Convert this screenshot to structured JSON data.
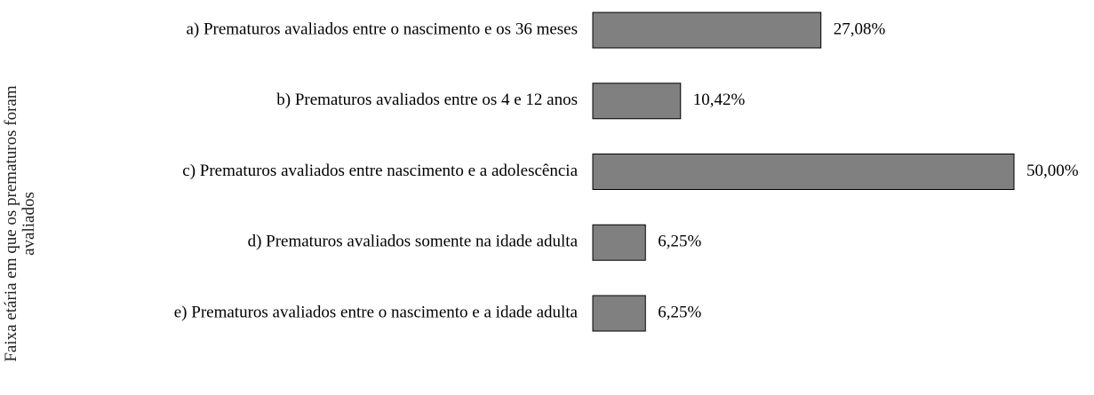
{
  "chart_data": {
    "type": "bar",
    "orientation": "horizontal",
    "y_label": "Faixa etária em que os prematuros foram avaliados",
    "categories": [
      "a) Prematuros avaliados entre o nascimento e os 36 meses",
      "b) Prematuros avaliados entre os 4 e 12 anos",
      "c) Prematuros avaliados entre nascimento e a adolescência",
      "d) Prematuros avaliados somente na idade adulta",
      "e) Prematuros avaliados entre o nascimento e a idade adulta"
    ],
    "values": [
      27.08,
      10.42,
      50,
      6.25,
      6.25
    ],
    "value_labels": [
      "27,08%",
      "10,42%",
      "50,00%",
      "6,25%",
      "6,25%"
    ],
    "color": "#808080"
  }
}
